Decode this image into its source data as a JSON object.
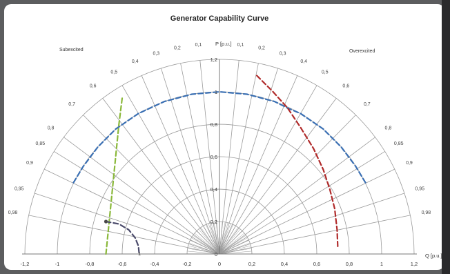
{
  "chart_data": {
    "type": "line",
    "title": "Generator Capability Curve",
    "xlabel": "Q [p.u.]",
    "ylabel": "P [p.u.]",
    "xlim": [
      -1.2,
      1.2
    ],
    "ylim": [
      0,
      1.2
    ],
    "x_ticks": [
      "-1,2",
      "-1",
      "-0,8",
      "-0,6",
      "-0,4",
      "-0,2",
      "0",
      "0,2",
      "0,4",
      "0,6",
      "0,8",
      "1",
      "1,2"
    ],
    "y_ticks": [
      "0",
      "0,2",
      "0,4",
      "0,6",
      "0,8",
      "1",
      "1,2"
    ],
    "region_labels": {
      "left": "Subexcited",
      "right": "Overexcited"
    },
    "power_factor_lines": [
      0.1,
      0.2,
      0.3,
      0.4,
      0.5,
      0.6,
      0.7,
      0.8,
      0.85,
      0.9,
      0.95,
      0.98
    ],
    "power_factor_labels_left": [
      "0,1",
      "0,2",
      "0,3",
      "0,4",
      "0,5",
      "0,6",
      "0,7",
      "0,8",
      "0,85",
      "0,9",
      "0,95",
      "0,98"
    ],
    "power_factor_labels_right": [
      "0,1",
      "0,2",
      "0,3",
      "0,4",
      "0,5",
      "0,6",
      "0,7",
      "0,8",
      "0,85",
      "0,9",
      "0,95",
      "0,98"
    ],
    "circle_radii": [
      0.2,
      0.4,
      0.6,
      0.8,
      1.0,
      1.2
    ],
    "stray_labels": [
      "1"
    ],
    "series": [
      {
        "color": "#3a6fb3",
        "points": [
          [
            -0.9,
            0.44
          ],
          [
            -0.84,
            0.54
          ],
          [
            -0.75,
            0.66
          ],
          [
            -0.64,
            0.77
          ],
          [
            -0.5,
            0.866
          ],
          [
            -0.34,
            0.94
          ],
          [
            -0.17,
            0.985
          ],
          [
            0.0,
            1.0
          ],
          [
            0.17,
            0.985
          ],
          [
            0.34,
            0.94
          ],
          [
            0.42,
            0.9
          ],
          [
            0.5,
            0.866
          ],
          [
            0.64,
            0.77
          ],
          [
            0.75,
            0.66
          ],
          [
            0.84,
            0.54
          ],
          [
            0.9,
            0.44
          ]
        ]
      },
      {
        "color": "#b02a2a",
        "points": [
          [
            0.23,
            1.1
          ],
          [
            0.33,
            1.0
          ],
          [
            0.42,
            0.9
          ],
          [
            0.5,
            0.78
          ],
          [
            0.58,
            0.65
          ],
          [
            0.64,
            0.52
          ],
          [
            0.68,
            0.4
          ],
          [
            0.71,
            0.28
          ],
          [
            0.725,
            0.15
          ],
          [
            0.73,
            0.03
          ]
        ]
      },
      {
        "color": "#8ab83a",
        "points": [
          [
            -0.6,
            0.96
          ],
          [
            -0.62,
            0.8
          ],
          [
            -0.64,
            0.6
          ],
          [
            -0.66,
            0.4
          ],
          [
            -0.68,
            0.2
          ],
          [
            -0.7,
            0.0
          ]
        ]
      },
      {
        "color": "#4a4a6a",
        "points": [
          [
            -0.7,
            0.2
          ],
          [
            -0.62,
            0.185
          ],
          [
            -0.56,
            0.15
          ],
          [
            -0.52,
            0.1
          ],
          [
            -0.5,
            0.05
          ],
          [
            -0.495,
            0.0
          ]
        ]
      }
    ],
    "markers": [
      {
        "x": -0.7,
        "y": 0.2,
        "color": "#4a4a4a"
      }
    ]
  }
}
